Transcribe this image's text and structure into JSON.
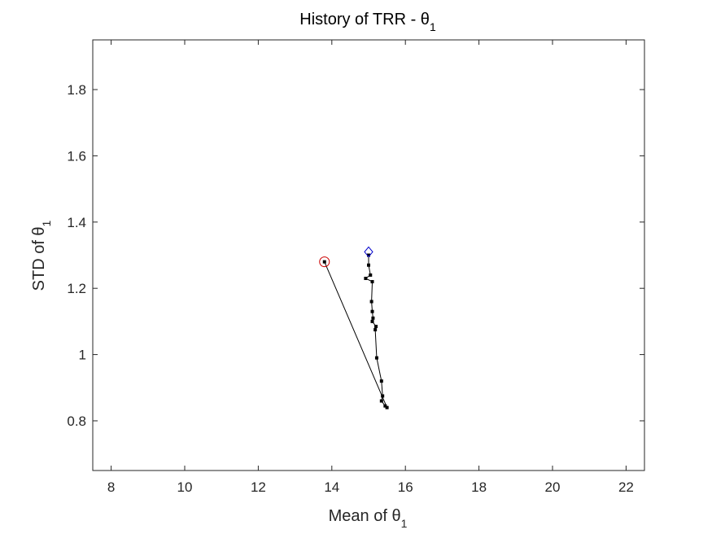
{
  "chart_data": {
    "type": "scatter",
    "title": "History of TRR - θ",
    "title_subscript": "1",
    "xlabel": "Mean of θ",
    "xlabel_subscript": "1",
    "ylabel": "STD of θ",
    "ylabel_subscript": "1",
    "xlim": [
      7.5,
      22.5
    ],
    "ylim": [
      0.65,
      1.95
    ],
    "xticks": [
      8,
      10,
      12,
      14,
      16,
      18,
      20,
      22
    ],
    "yticks": [
      0.8,
      1,
      1.2,
      1.4,
      1.6,
      1.8
    ],
    "xtick_labels": [
      "8",
      "10",
      "12",
      "14",
      "16",
      "18",
      "20",
      "22"
    ],
    "ytick_labels": [
      "0.8",
      "1",
      "1.2",
      "1.4",
      "1.6",
      "1.8"
    ],
    "grid": false,
    "series": [
      {
        "style": "line-with-markers",
        "color": "#000000",
        "points": [
          {
            "x": 15.0,
            "y": 1.3
          },
          {
            "x": 15.0,
            "y": 1.27
          },
          {
            "x": 15.05,
            "y": 1.24
          },
          {
            "x": 14.92,
            "y": 1.23
          },
          {
            "x": 15.1,
            "y": 1.22
          },
          {
            "x": 15.08,
            "y": 1.16
          },
          {
            "x": 15.1,
            "y": 1.13
          },
          {
            "x": 15.12,
            "y": 1.11
          },
          {
            "x": 15.1,
            "y": 1.1
          },
          {
            "x": 15.2,
            "y": 1.085
          },
          {
            "x": 15.18,
            "y": 1.075
          },
          {
            "x": 15.22,
            "y": 0.99
          },
          {
            "x": 15.35,
            "y": 0.92
          },
          {
            "x": 15.38,
            "y": 0.875
          },
          {
            "x": 15.35,
            "y": 0.86
          },
          {
            "x": 15.45,
            "y": 0.845
          },
          {
            "x": 15.5,
            "y": 0.84
          },
          {
            "x": 13.8,
            "y": 1.28
          }
        ]
      }
    ],
    "start_marker": {
      "x": 15.0,
      "y": 1.31,
      "shape": "diamond",
      "color": "#0000cc"
    },
    "end_marker": {
      "x": 13.8,
      "y": 1.28,
      "shape": "circle",
      "color": "#cc0000"
    }
  }
}
